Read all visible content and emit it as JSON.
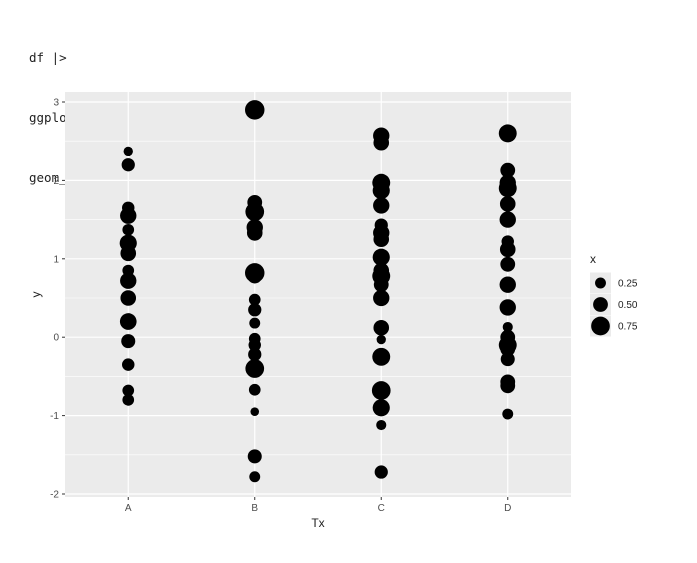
{
  "code_lines": [
    "df |>",
    "ggplot(aes(Tx, y, size = x)) +",
    "geom_point()"
  ],
  "colors": {
    "panel": "#ebebeb",
    "grid": "#ffffff",
    "point": "#000000",
    "tick_text": "#4d4d4d"
  },
  "chart_data": {
    "type": "scatter",
    "title": "",
    "xlabel": "Tx",
    "ylabel": "y",
    "categories": [
      "A",
      "B",
      "C",
      "D"
    ],
    "ylim": [
      -2,
      3
    ],
    "yticks": [
      -2,
      -1,
      0,
      1,
      2,
      3
    ],
    "grid": true,
    "size_legend": {
      "title": "x",
      "position": "right",
      "breaks": [
        0.25,
        0.5,
        0.75
      ],
      "labels": [
        "0.25",
        "0.50",
        "0.75"
      ]
    },
    "points": [
      {
        "Tx": "A",
        "y": 2.37,
        "x": 0.15
      },
      {
        "Tx": "A",
        "y": 2.2,
        "x": 0.4
      },
      {
        "Tx": "A",
        "y": 1.65,
        "x": 0.35
      },
      {
        "Tx": "A",
        "y": 1.55,
        "x": 0.6
      },
      {
        "Tx": "A",
        "y": 1.37,
        "x": 0.3
      },
      {
        "Tx": "A",
        "y": 1.2,
        "x": 0.65
      },
      {
        "Tx": "A",
        "y": 1.07,
        "x": 0.55
      },
      {
        "Tx": "A",
        "y": 0.85,
        "x": 0.3
      },
      {
        "Tx": "A",
        "y": 0.72,
        "x": 0.6
      },
      {
        "Tx": "A",
        "y": 0.5,
        "x": 0.55
      },
      {
        "Tx": "A",
        "y": 0.2,
        "x": 0.62
      },
      {
        "Tx": "A",
        "y": -0.05,
        "x": 0.45
      },
      {
        "Tx": "A",
        "y": -0.35,
        "x": 0.35
      },
      {
        "Tx": "A",
        "y": -0.68,
        "x": 0.3
      },
      {
        "Tx": "A",
        "y": -0.8,
        "x": 0.3
      },
      {
        "Tx": "B",
        "y": 2.9,
        "x": 0.8
      },
      {
        "Tx": "B",
        "y": 1.72,
        "x": 0.5
      },
      {
        "Tx": "B",
        "y": 1.6,
        "x": 0.75
      },
      {
        "Tx": "B",
        "y": 1.4,
        "x": 0.6
      },
      {
        "Tx": "B",
        "y": 1.33,
        "x": 0.55
      },
      {
        "Tx": "B",
        "y": 0.82,
        "x": 0.8
      },
      {
        "Tx": "B",
        "y": 0.78,
        "x": 0.5
      },
      {
        "Tx": "B",
        "y": 0.48,
        "x": 0.3
      },
      {
        "Tx": "B",
        "y": 0.35,
        "x": 0.4
      },
      {
        "Tx": "B",
        "y": 0.18,
        "x": 0.25
      },
      {
        "Tx": "B",
        "y": -0.02,
        "x": 0.3
      },
      {
        "Tx": "B",
        "y": -0.1,
        "x": 0.35
      },
      {
        "Tx": "B",
        "y": -0.22,
        "x": 0.4
      },
      {
        "Tx": "B",
        "y": -0.4,
        "x": 0.75
      },
      {
        "Tx": "B",
        "y": -0.67,
        "x": 0.3
      },
      {
        "Tx": "B",
        "y": -0.95,
        "x": 0.1
      },
      {
        "Tx": "B",
        "y": -1.52,
        "x": 0.45
      },
      {
        "Tx": "B",
        "y": -1.78,
        "x": 0.25
      },
      {
        "Tx": "C",
        "y": 2.57,
        "x": 0.6
      },
      {
        "Tx": "C",
        "y": 2.48,
        "x": 0.55
      },
      {
        "Tx": "C",
        "y": 1.97,
        "x": 0.7
      },
      {
        "Tx": "C",
        "y": 1.87,
        "x": 0.65
      },
      {
        "Tx": "C",
        "y": 1.68,
        "x": 0.6
      },
      {
        "Tx": "C",
        "y": 1.43,
        "x": 0.4
      },
      {
        "Tx": "C",
        "y": 1.33,
        "x": 0.6
      },
      {
        "Tx": "C",
        "y": 1.25,
        "x": 0.55
      },
      {
        "Tx": "C",
        "y": 1.02,
        "x": 0.65
      },
      {
        "Tx": "C",
        "y": 0.85,
        "x": 0.55
      },
      {
        "Tx": "C",
        "y": 0.78,
        "x": 0.7
      },
      {
        "Tx": "C",
        "y": 0.67,
        "x": 0.5
      },
      {
        "Tx": "C",
        "y": 0.5,
        "x": 0.6
      },
      {
        "Tx": "C",
        "y": 0.12,
        "x": 0.55
      },
      {
        "Tx": "C",
        "y": -0.03,
        "x": 0.15
      },
      {
        "Tx": "C",
        "y": -0.25,
        "x": 0.7
      },
      {
        "Tx": "C",
        "y": -0.68,
        "x": 0.75
      },
      {
        "Tx": "C",
        "y": -0.9,
        "x": 0.65
      },
      {
        "Tx": "C",
        "y": -1.12,
        "x": 0.2
      },
      {
        "Tx": "C",
        "y": -1.72,
        "x": 0.4
      },
      {
        "Tx": "D",
        "y": 2.6,
        "x": 0.7
      },
      {
        "Tx": "D",
        "y": 2.13,
        "x": 0.5
      },
      {
        "Tx": "D",
        "y": 1.97,
        "x": 0.6
      },
      {
        "Tx": "D",
        "y": 1.9,
        "x": 0.7
      },
      {
        "Tx": "D",
        "y": 1.7,
        "x": 0.55
      },
      {
        "Tx": "D",
        "y": 1.5,
        "x": 0.6
      },
      {
        "Tx": "D",
        "y": 1.22,
        "x": 0.35
      },
      {
        "Tx": "D",
        "y": 1.12,
        "x": 0.55
      },
      {
        "Tx": "D",
        "y": 0.93,
        "x": 0.5
      },
      {
        "Tx": "D",
        "y": 0.67,
        "x": 0.6
      },
      {
        "Tx": "D",
        "y": 0.38,
        "x": 0.6
      },
      {
        "Tx": "D",
        "y": 0.13,
        "x": 0.2
      },
      {
        "Tx": "D",
        "y": 0.0,
        "x": 0.5
      },
      {
        "Tx": "D",
        "y": -0.1,
        "x": 0.7
      },
      {
        "Tx": "D",
        "y": -0.15,
        "x": 0.5
      },
      {
        "Tx": "D",
        "y": -0.28,
        "x": 0.45
      },
      {
        "Tx": "D",
        "y": -0.57,
        "x": 0.5
      },
      {
        "Tx": "D",
        "y": -0.62,
        "x": 0.5
      },
      {
        "Tx": "D",
        "y": -0.98,
        "x": 0.25
      }
    ]
  }
}
